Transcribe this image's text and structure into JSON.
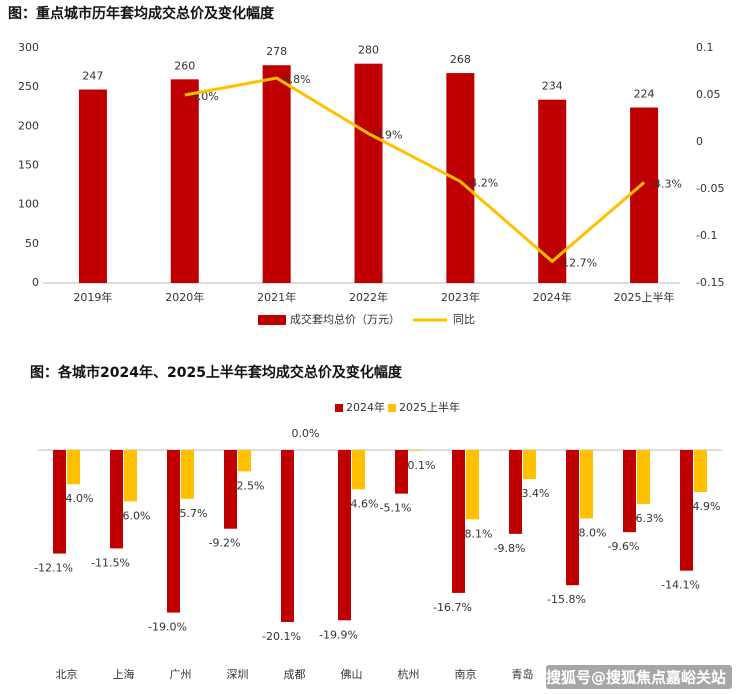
{
  "chart_data": [
    {
      "type": "bar",
      "title": "图：重点城市历年套均成交总价及变化幅度",
      "categories": [
        "2019年",
        "2020年",
        "2021年",
        "2022年",
        "2023年",
        "2024年",
        "2025上半年"
      ],
      "series": [
        {
          "name": "成交套均总价（万元）",
          "color": "#c00000",
          "values": [
            247,
            260,
            278,
            280,
            268,
            234,
            224
          ]
        },
        {
          "name": "同比",
          "type": "line",
          "axis": "y2",
          "color": "#ffc000",
          "values": [
            null,
            0.05,
            0.068,
            0.009,
            -0.042,
            -0.127,
            -0.043
          ],
          "value_labels": [
            null,
            "5.0%",
            "6.8%",
            "0.9%",
            "-4.2%",
            "-12.7%",
            "-4.3%"
          ]
        }
      ],
      "ylim": [
        0,
        300
      ],
      "yticks": [
        0,
        50,
        100,
        150,
        200,
        250,
        300
      ],
      "y2lim": [
        -0.15,
        0.1
      ],
      "y2ticks": [
        -0.15,
        -0.1,
        -0.05,
        0,
        0.05,
        0.1
      ],
      "legend": "bottom"
    },
    {
      "type": "bar",
      "title": "图：各城市2024年、2025上半年套均成交总价及变化幅度",
      "categories": [
        "北京",
        "上海",
        "广州",
        "深圳",
        "成都",
        "佛山",
        "杭州",
        "南京",
        "青岛",
        null,
        null,
        null
      ],
      "series": [
        {
          "name": "2024年",
          "color": "#c00000",
          "values": [
            -12.1,
            -11.5,
            -19.0,
            -9.2,
            -20.1,
            -19.9,
            -5.1,
            -16.7,
            -9.8,
            -15.8,
            -9.6,
            -14.1
          ],
          "value_labels": [
            "-12.1%",
            "-11.5%",
            "-19.0%",
            "-9.2%",
            "-20.1%",
            "-19.9%",
            "-5.1%",
            "-16.7%",
            "-9.8%",
            "-15.8%",
            "-9.6%",
            "-14.1%"
          ]
        },
        {
          "name": "2025上半年",
          "color": "#ffc000",
          "values": [
            -4.0,
            -6.0,
            -5.7,
            -2.5,
            0.0,
            -4.6,
            -0.1,
            -8.1,
            -3.4,
            -8.0,
            -6.3,
            -4.9
          ],
          "value_labels": [
            "-4.0%",
            "-6.0%",
            "-5.7%",
            "-2.5%",
            "0.0%",
            "-4.6%",
            "-0.1%",
            "-8.1%",
            "-3.4%",
            "-8.0%",
            "-6.3%",
            "-4.9%"
          ]
        }
      ],
      "legend": "top"
    }
  ],
  "watermark": "搜狐号@搜狐焦点嘉峪关站"
}
